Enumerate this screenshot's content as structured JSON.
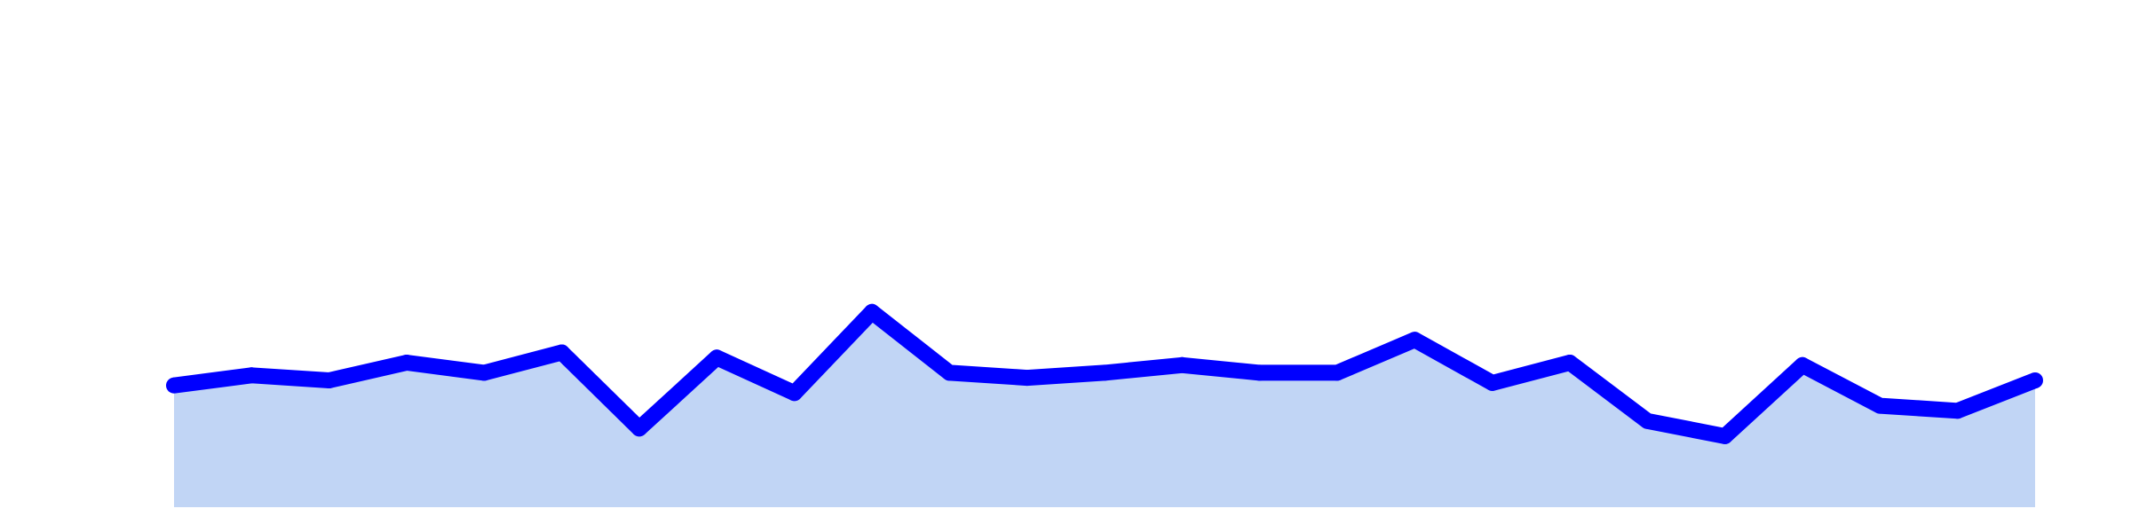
{
  "chart_data": {
    "type": "area",
    "title": "",
    "xlabel": "",
    "ylabel": "",
    "x": [
      1,
      2,
      3,
      4,
      5,
      6,
      7,
      8,
      9,
      10,
      11,
      12,
      13,
      14,
      15,
      16,
      17,
      18,
      19,
      20,
      21,
      22,
      23,
      24,
      25
    ],
    "series": [
      {
        "values": [
          24.0,
          26.0,
          25.0,
          28.5,
          26.5,
          30.5,
          15.5,
          29.5,
          22.5,
          38.5,
          26.5,
          25.5,
          26.5,
          28.0,
          26.5,
          26.5,
          33.0,
          24.5,
          28.5,
          17.0,
          14.0,
          28.0,
          20.0,
          19.0,
          25.0
        ],
        "line_color": "#0000ff",
        "fill_color": "#c1d5f5"
      }
    ],
    "xlim": [
      1,
      25
    ],
    "ylim": [
      0,
      100
    ],
    "grid": false,
    "axes_visible": false,
    "legend": "none"
  }
}
